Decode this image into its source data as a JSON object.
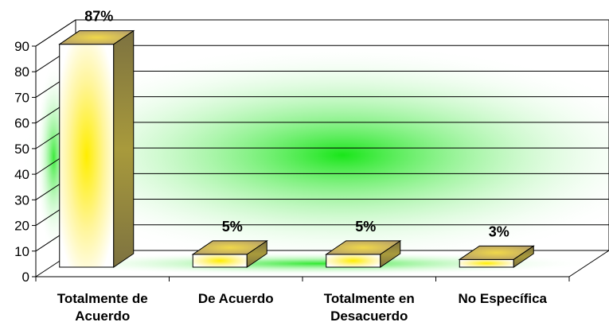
{
  "chart_data": {
    "type": "bar",
    "categories": [
      [
        "Totalmente de",
        "Acuerdo"
      ],
      [
        "De  Acuerdo"
      ],
      [
        "Totalmente en",
        "Desacuerdo"
      ],
      [
        "No Específica"
      ]
    ],
    "values": [
      87,
      5,
      5,
      3
    ],
    "data_labels": [
      "87%",
      "5%",
      "5%",
      "3%"
    ],
    "ylim": [
      0,
      90
    ],
    "yticks": [
      "0",
      "10",
      "20",
      "30",
      "40",
      "50",
      "60",
      "70",
      "80",
      "90"
    ],
    "grid": true,
    "three_d": true,
    "legend": "none",
    "title": "",
    "xlabel": "",
    "ylabel": ""
  },
  "colors": {
    "wall_glow": "#19e619",
    "bar_front_glow": "#ffee00",
    "bar_top": "#c8b46a",
    "bar_side": "#8a7f45",
    "gridline": "#000000"
  }
}
